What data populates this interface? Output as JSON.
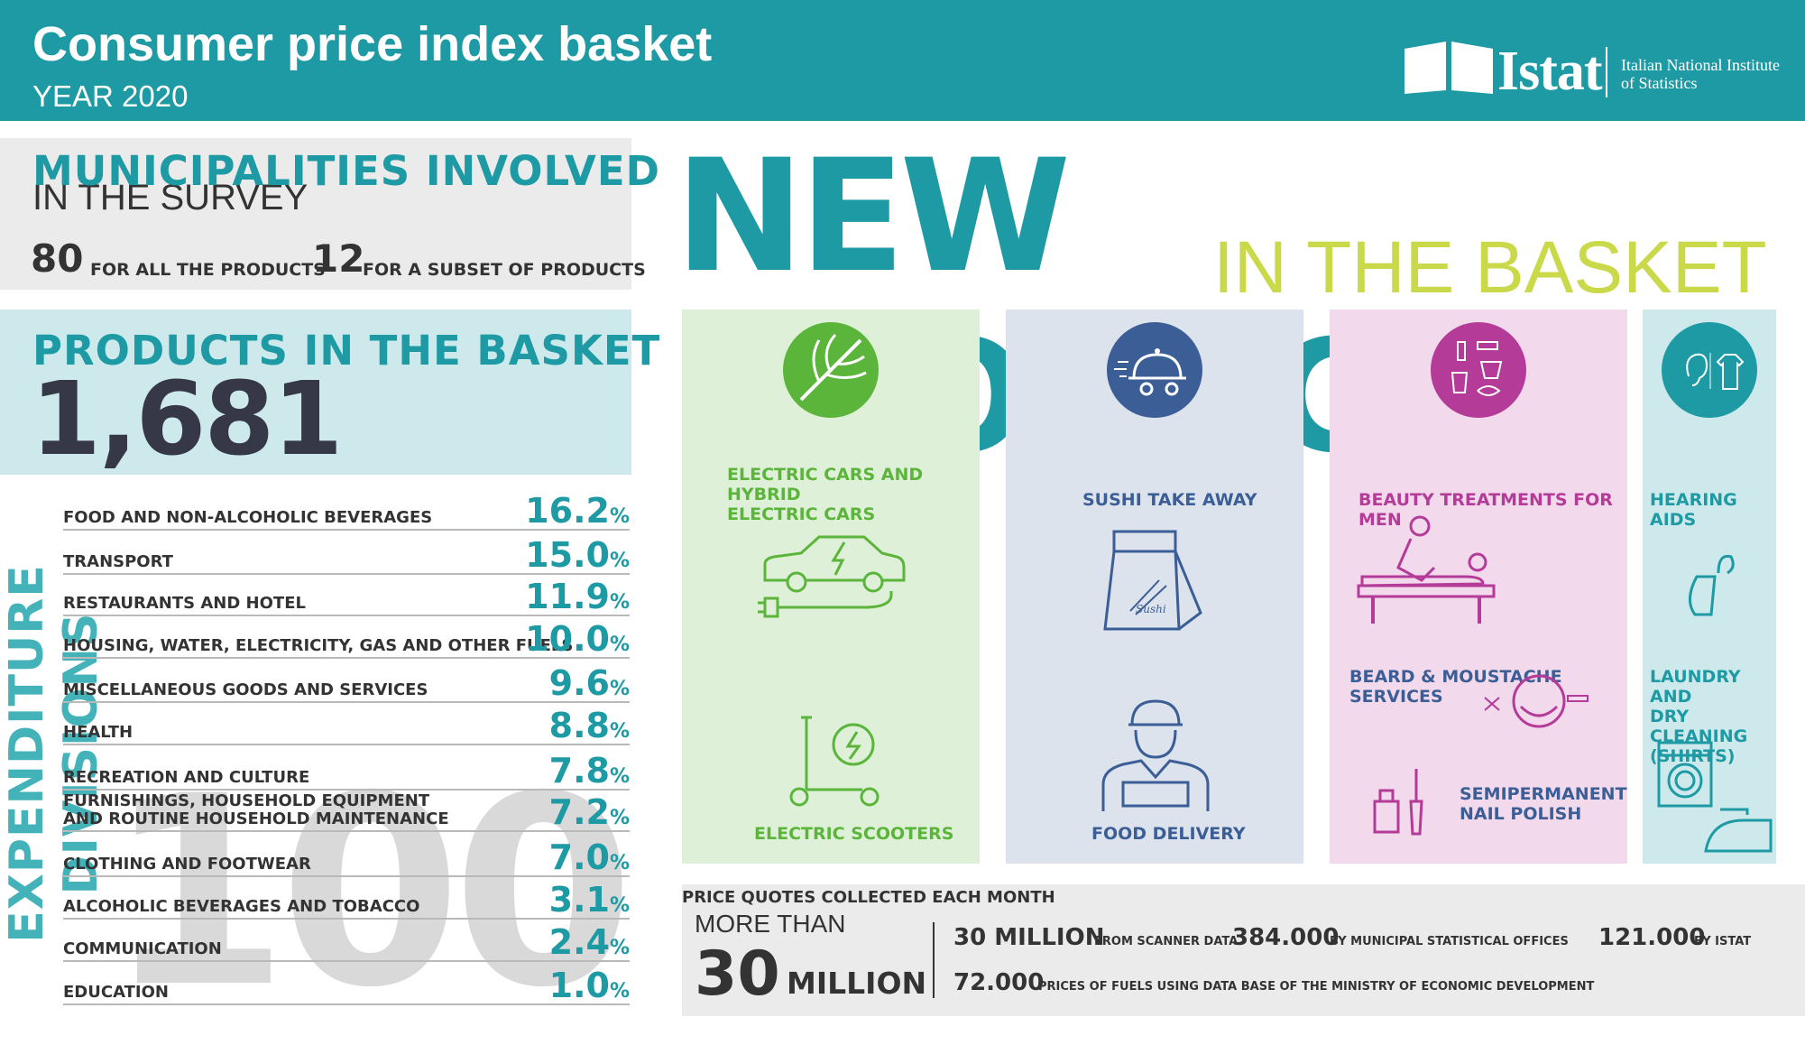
{
  "header": {
    "title": "Consumer price index basket",
    "subtitle": "YEAR 2020",
    "logo_text": "Istat",
    "institute_line1": "Italian National Institute",
    "institute_line2": "of Statistics"
  },
  "municipalities": {
    "title": "MUNICIPALITIES INVOLVED",
    "subtitle": "IN THE SURVEY",
    "all_value": "80",
    "all_label": "FOR ALL THE PRODUCTS",
    "subset_value": "12",
    "subset_label": "FOR A SUBSET OF PRODUCTS"
  },
  "basket": {
    "title": "PRODUCTS IN THE BASKET",
    "count": "1,681"
  },
  "expenditure": {
    "vertical_label": "EXPENDITURE DIVISIONS",
    "total_watermark": "100",
    "divisions": [
      {
        "label": "FOOD AND NON-ALCOHOLIC BEVERAGES",
        "value": "16.2",
        "unit": "%"
      },
      {
        "label": "TRANSPORT",
        "value": "15.0",
        "unit": "%"
      },
      {
        "label": "RESTAURANTS AND HOTEL",
        "value": "11.9",
        "unit": "%"
      },
      {
        "label": "HOUSING, WATER, ELECTRICITY, GAS AND OTHER FUELS",
        "value": "10.0",
        "unit": "%"
      },
      {
        "label": "MISCELLANEOUS GOODS AND SERVICES",
        "value": "9.6",
        "unit": "%"
      },
      {
        "label": "HEALTH",
        "value": "8.8",
        "unit": "%"
      },
      {
        "label": "RECREATION AND CULTURE",
        "value": "7.8",
        "unit": "%"
      },
      {
        "label": "FURNISHINGS, HOUSEHOLD EQUIPMENT",
        "label2": "AND ROUTINE HOUSEHOLD MAINTENANCE",
        "value": "7.2",
        "unit": "%"
      },
      {
        "label": "CLOTHING AND FOOTWEAR",
        "value": "7.0",
        "unit": "%"
      },
      {
        "label": "ALCOHOLIC BEVERAGES AND TOBACCO",
        "value": "3.1",
        "unit": "%"
      },
      {
        "label": "COMMUNICATION",
        "value": "2.4",
        "unit": "%"
      },
      {
        "label": "EDUCATION",
        "value": "1.0",
        "unit": "%"
      }
    ]
  },
  "new_products": {
    "title": "NEW PRODUCTS",
    "subtitle": "IN THE BASKET",
    "columns": [
      {
        "color": "#dff0d8",
        "accent": "#5bb53b",
        "icon": "leaf-icon",
        "items": [
          "ELECTRIC CARS AND HYBRID",
          "ELECTRIC CARS",
          "ELECTRIC SCOOTERS"
        ]
      },
      {
        "color": "#dde3ec",
        "accent": "#3c5e96",
        "icon": "food-cloche-icon",
        "items": [
          "SUSHI TAKE AWAY",
          "FOOD DELIVERY"
        ]
      },
      {
        "color": "#f2d9ec",
        "accent": "#b43c98",
        "icon": "cosmetics-icon",
        "items": [
          "BEAUTY TREATMENTS FOR MEN",
          "BEARD & MOUSTACHE",
          "SERVICES",
          "SEMIPERMANENT",
          "NAIL POLISH"
        ]
      },
      {
        "color": "#cde9ec",
        "accent": "#1d9aa3",
        "icon": "ear-shirt-icon",
        "items": [
          "HEARING AIDS",
          "LAUNDRY AND",
          "DRY CLEANING",
          "(SHIRTS)"
        ]
      }
    ],
    "sushi_bag_text": "Sushi"
  },
  "quotes": {
    "title": "PRICE QUOTES COLLECTED EACH MONTH",
    "more_than": "MORE THAN",
    "total_value": "30",
    "total_unit": "MILLION",
    "sources": [
      {
        "value": "30 MILLION",
        "label": "FROM SCANNER DATA"
      },
      {
        "value": "384.000",
        "label": "BY MUNICIPAL STATISTICAL OFFICES"
      },
      {
        "value": "121.000",
        "label": "BY ISTAT"
      },
      {
        "value": "72.000",
        "label": "PRICES OF FUELS USING DATA BASE OF THE MINISTRY OF ECONOMIC DEVELOPMENT"
      }
    ]
  }
}
